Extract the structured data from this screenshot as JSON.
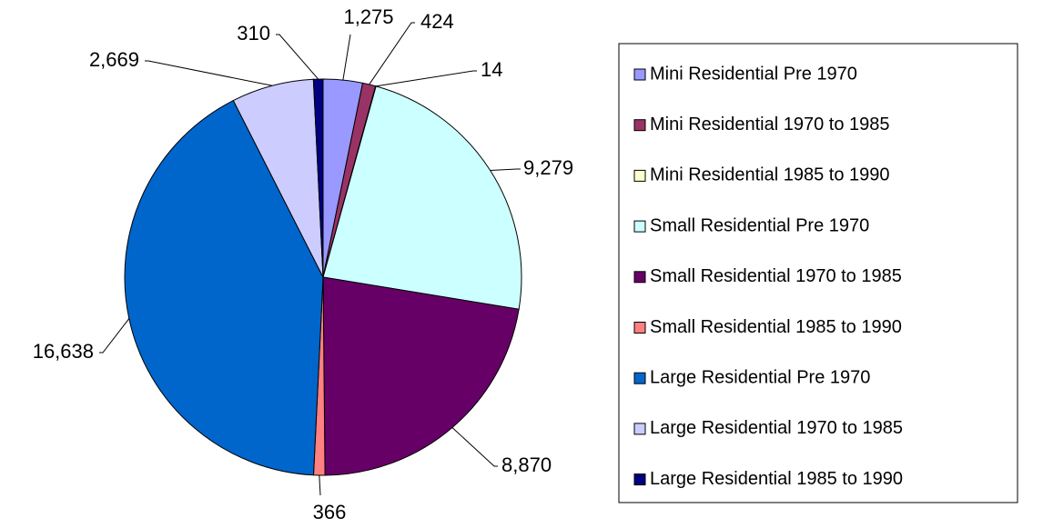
{
  "chart_data": {
    "type": "pie",
    "categories": [
      "Mini Residential Pre 1970",
      "Mini Residential 1970 to 1985",
      "Mini Residential 1985 to 1990",
      "Small Residential Pre 1970",
      "Small Residential 1970 to 1985",
      "Small Residential 1985 to 1990",
      "Large Residential Pre 1970",
      "Large Residential 1970 to 1985",
      "Large Residential 1985 to 1990"
    ],
    "values": [
      1275,
      424,
      14,
      9279,
      8870,
      366,
      16638,
      2669,
      310
    ],
    "value_labels": [
      "1,275",
      "424",
      "14",
      "9,279",
      "8,870",
      "366",
      "16,638",
      "2,669",
      "310"
    ],
    "colors": [
      "#9999ff",
      "#993366",
      "#ffffcc",
      "#ccffff",
      "#660066",
      "#ff8080",
      "#0066cc",
      "#ccccff",
      "#000080"
    ],
    "legend": "right"
  }
}
